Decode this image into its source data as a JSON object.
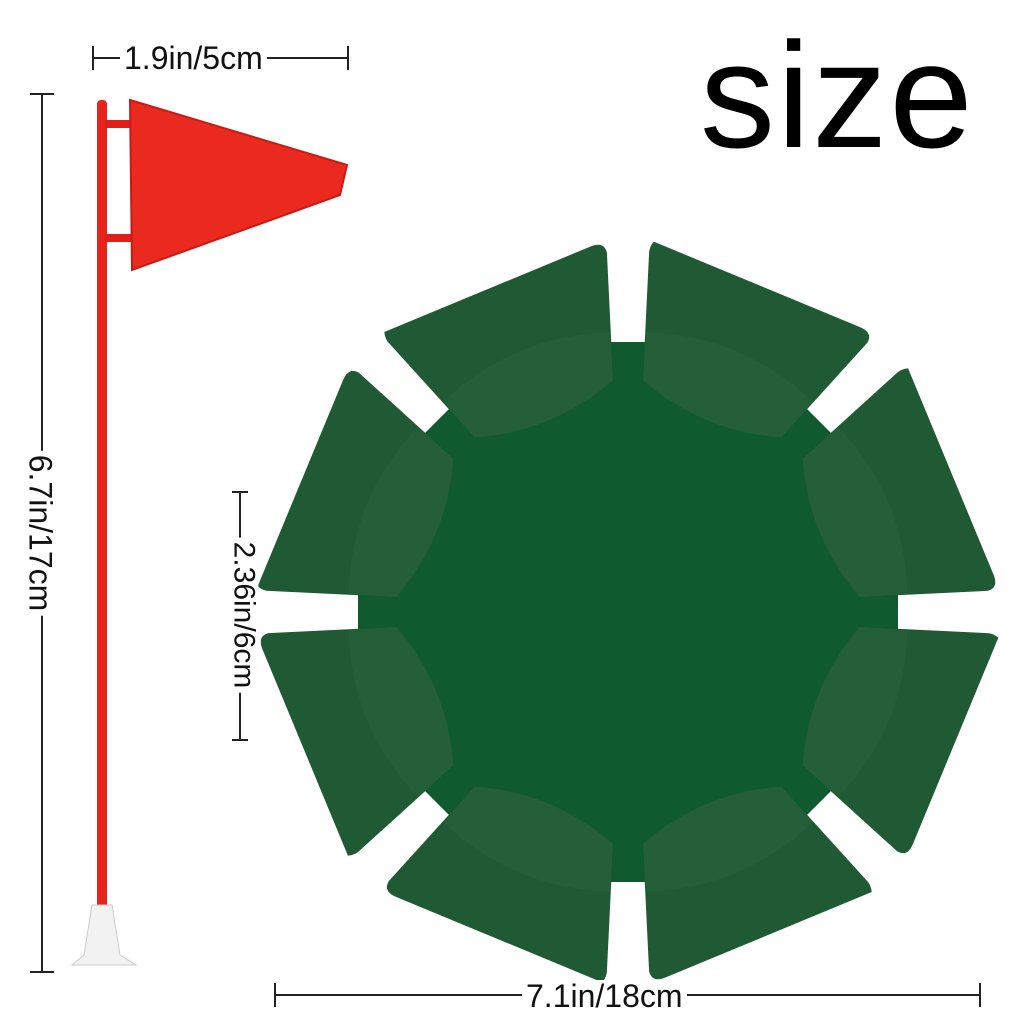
{
  "title": "size",
  "dimensions": {
    "flag_width": "1.9in/5cm",
    "flag_height": "6.7in/17cm",
    "cup_depth": "2.36in/6cm",
    "cup_diameter": "7.1in/18cm"
  },
  "colors": {
    "flag": "#e8231b",
    "cup": "#1f5a35",
    "cup_inner": "#0f5a2e",
    "base": "#f2f2f2"
  }
}
